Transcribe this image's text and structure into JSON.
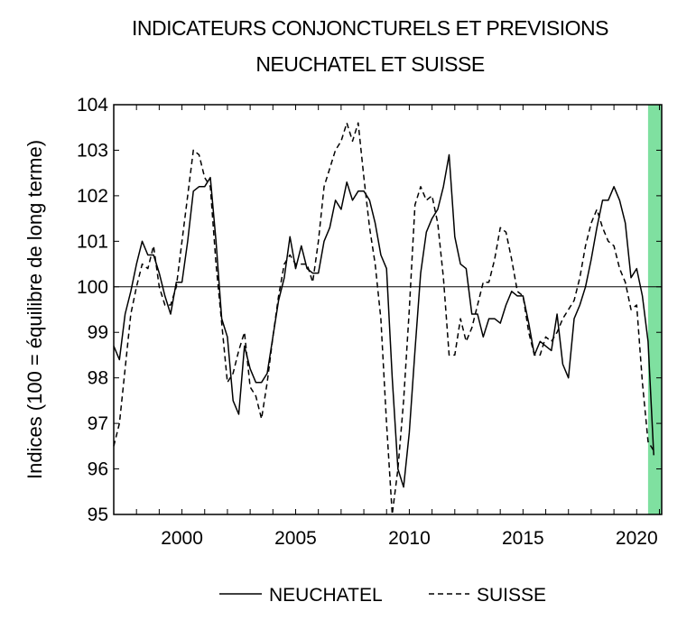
{
  "chart_data": {
    "type": "line",
    "title": "INDICATEURS CONJONCTURELS ET PREVISIONS",
    "subtitle": "NEUCHATEL ET SUISSE",
    "xlabel": "",
    "ylabel": "Indices (100 = équilibre de long terme)",
    "xlim": [
      1997,
      2021.1
    ],
    "ylim": [
      95,
      104
    ],
    "x_ticks": [
      "2000",
      "2005",
      "2010",
      "2015",
      "2020"
    ],
    "y_ticks": [
      "95",
      "96",
      "97",
      "98",
      "99",
      "100",
      "101",
      "102",
      "103",
      "104"
    ],
    "reference_line": 100,
    "forecast_band": [
      2020.5,
      2021.1
    ],
    "forecast_band_color": "#7fe0a0",
    "legend_position": "bottom",
    "series": [
      {
        "name": "NEUCHATEL",
        "style": "solid",
        "points": [
          [
            1997.0,
            98.7
          ],
          [
            1997.25,
            98.4
          ],
          [
            1997.5,
            99.4
          ],
          [
            1997.75,
            99.9
          ],
          [
            1998.0,
            100.5
          ],
          [
            1998.25,
            101.0
          ],
          [
            1998.5,
            100.7
          ],
          [
            1998.75,
            100.7
          ],
          [
            1999.0,
            100.3
          ],
          [
            1999.25,
            99.8
          ],
          [
            1999.5,
            99.4
          ],
          [
            1999.75,
            100.1
          ],
          [
            2000.0,
            100.1
          ],
          [
            2000.25,
            101.0
          ],
          [
            2000.5,
            102.1
          ],
          [
            2000.75,
            102.2
          ],
          [
            2001.0,
            102.2
          ],
          [
            2001.25,
            102.4
          ],
          [
            2001.5,
            101.0
          ],
          [
            2001.75,
            99.3
          ],
          [
            2002.0,
            98.9
          ],
          [
            2002.25,
            97.5
          ],
          [
            2002.5,
            97.2
          ],
          [
            2002.75,
            98.7
          ],
          [
            2003.0,
            98.2
          ],
          [
            2003.25,
            97.9
          ],
          [
            2003.5,
            97.9
          ],
          [
            2003.75,
            98.1
          ],
          [
            2004.0,
            98.9
          ],
          [
            2004.25,
            99.7
          ],
          [
            2004.5,
            100.2
          ],
          [
            2004.75,
            101.1
          ],
          [
            2005.0,
            100.4
          ],
          [
            2005.25,
            100.9
          ],
          [
            2005.5,
            100.4
          ],
          [
            2005.75,
            100.3
          ],
          [
            2006.0,
            100.3
          ],
          [
            2006.25,
            101.0
          ],
          [
            2006.5,
            101.3
          ],
          [
            2006.75,
            101.9
          ],
          [
            2007.0,
            101.7
          ],
          [
            2007.25,
            102.3
          ],
          [
            2007.5,
            101.9
          ],
          [
            2007.75,
            102.1
          ],
          [
            2008.0,
            102.1
          ],
          [
            2008.25,
            101.9
          ],
          [
            2008.5,
            101.4
          ],
          [
            2008.75,
            100.7
          ],
          [
            2009.0,
            100.4
          ],
          [
            2009.25,
            98.0
          ],
          [
            2009.5,
            96.0
          ],
          [
            2009.75,
            95.6
          ],
          [
            2010.0,
            96.8
          ],
          [
            2010.25,
            98.6
          ],
          [
            2010.5,
            100.3
          ],
          [
            2010.75,
            101.2
          ],
          [
            2011.0,
            101.5
          ],
          [
            2011.25,
            101.7
          ],
          [
            2011.5,
            102.2
          ],
          [
            2011.75,
            102.9
          ],
          [
            2012.0,
            101.1
          ],
          [
            2012.25,
            100.5
          ],
          [
            2012.5,
            100.4
          ],
          [
            2012.75,
            99.4
          ],
          [
            2013.0,
            99.4
          ],
          [
            2013.25,
            98.9
          ],
          [
            2013.5,
            99.3
          ],
          [
            2013.75,
            99.3
          ],
          [
            2014.0,
            99.2
          ],
          [
            2014.25,
            99.6
          ],
          [
            2014.5,
            99.9
          ],
          [
            2014.75,
            99.8
          ],
          [
            2015.0,
            99.8
          ],
          [
            2015.25,
            99.2
          ],
          [
            2015.5,
            98.5
          ],
          [
            2015.75,
            98.8
          ],
          [
            2016.0,
            98.7
          ],
          [
            2016.25,
            98.6
          ],
          [
            2016.5,
            99.4
          ],
          [
            2016.75,
            98.3
          ],
          [
            2017.0,
            98.0
          ],
          [
            2017.25,
            99.3
          ],
          [
            2017.5,
            99.6
          ],
          [
            2017.75,
            100.0
          ],
          [
            2018.0,
            100.6
          ],
          [
            2018.25,
            101.3
          ],
          [
            2018.5,
            101.9
          ],
          [
            2018.75,
            101.9
          ],
          [
            2019.0,
            102.2
          ],
          [
            2019.25,
            101.9
          ],
          [
            2019.5,
            101.4
          ],
          [
            2019.75,
            100.2
          ],
          [
            2020.0,
            100.4
          ],
          [
            2020.25,
            99.8
          ],
          [
            2020.5,
            98.8
          ],
          [
            2020.75,
            96.3
          ]
        ]
      },
      {
        "name": "SUISSE",
        "style": "dashed",
        "points": [
          [
            1997.0,
            96.5
          ],
          [
            1997.25,
            97.0
          ],
          [
            1997.5,
            98.2
          ],
          [
            1997.75,
            99.4
          ],
          [
            1998.0,
            100.0
          ],
          [
            1998.25,
            100.5
          ],
          [
            1998.5,
            100.4
          ],
          [
            1998.75,
            100.9
          ],
          [
            1999.0,
            100.0
          ],
          [
            1999.25,
            99.6
          ],
          [
            1999.5,
            99.6
          ],
          [
            1999.75,
            100.0
          ],
          [
            2000.0,
            101.0
          ],
          [
            2000.25,
            102.0
          ],
          [
            2000.5,
            103.0
          ],
          [
            2000.75,
            102.9
          ],
          [
            2001.0,
            102.4
          ],
          [
            2001.25,
            102.2
          ],
          [
            2001.5,
            100.5
          ],
          [
            2001.75,
            99.2
          ],
          [
            2002.0,
            97.9
          ],
          [
            2002.25,
            98.1
          ],
          [
            2002.5,
            98.6
          ],
          [
            2002.75,
            99.0
          ],
          [
            2003.0,
            97.8
          ],
          [
            2003.25,
            97.6
          ],
          [
            2003.5,
            97.1
          ],
          [
            2003.75,
            97.9
          ],
          [
            2004.0,
            98.9
          ],
          [
            2004.25,
            99.8
          ],
          [
            2004.5,
            100.5
          ],
          [
            2004.75,
            100.7
          ],
          [
            2005.0,
            100.5
          ],
          [
            2005.25,
            100.5
          ],
          [
            2005.5,
            100.5
          ],
          [
            2005.75,
            100.1
          ],
          [
            2006.0,
            101.0
          ],
          [
            2006.25,
            102.2
          ],
          [
            2006.5,
            102.6
          ],
          [
            2006.75,
            103.0
          ],
          [
            2007.0,
            103.2
          ],
          [
            2007.25,
            103.6
          ],
          [
            2007.5,
            103.2
          ],
          [
            2007.75,
            103.6
          ],
          [
            2008.0,
            102.4
          ],
          [
            2008.25,
            101.3
          ],
          [
            2008.5,
            100.5
          ],
          [
            2008.75,
            99.3
          ],
          [
            2009.0,
            97.0
          ],
          [
            2009.25,
            95.0
          ],
          [
            2009.5,
            96.0
          ],
          [
            2009.75,
            97.5
          ],
          [
            2010.0,
            99.5
          ],
          [
            2010.25,
            101.8
          ],
          [
            2010.5,
            102.2
          ],
          [
            2010.75,
            101.9
          ],
          [
            2011.0,
            102.0
          ],
          [
            2011.25,
            101.4
          ],
          [
            2011.5,
            100.2
          ],
          [
            2011.75,
            98.5
          ],
          [
            2012.0,
            98.5
          ],
          [
            2012.25,
            99.3
          ],
          [
            2012.5,
            98.8
          ],
          [
            2012.75,
            99.1
          ],
          [
            2013.0,
            99.6
          ],
          [
            2013.25,
            100.1
          ],
          [
            2013.5,
            100.1
          ],
          [
            2013.75,
            100.6
          ],
          [
            2014.0,
            101.3
          ],
          [
            2014.25,
            101.2
          ],
          [
            2014.5,
            100.6
          ],
          [
            2014.75,
            99.9
          ],
          [
            2015.0,
            99.8
          ],
          [
            2015.25,
            99.0
          ],
          [
            2015.5,
            98.5
          ],
          [
            2015.75,
            98.5
          ],
          [
            2016.0,
            98.9
          ],
          [
            2016.25,
            98.8
          ],
          [
            2016.5,
            99.0
          ],
          [
            2016.75,
            99.3
          ],
          [
            2017.0,
            99.5
          ],
          [
            2017.25,
            99.7
          ],
          [
            2017.5,
            100.2
          ],
          [
            2017.75,
            100.9
          ],
          [
            2018.0,
            101.4
          ],
          [
            2018.25,
            101.7
          ],
          [
            2018.5,
            101.3
          ],
          [
            2018.75,
            101.0
          ],
          [
            2019.0,
            100.9
          ],
          [
            2019.25,
            100.4
          ],
          [
            2019.5,
            100.1
          ],
          [
            2019.75,
            99.5
          ],
          [
            2020.0,
            99.6
          ],
          [
            2020.25,
            97.9
          ],
          [
            2020.5,
            96.6
          ],
          [
            2020.75,
            96.4
          ]
        ]
      }
    ]
  }
}
